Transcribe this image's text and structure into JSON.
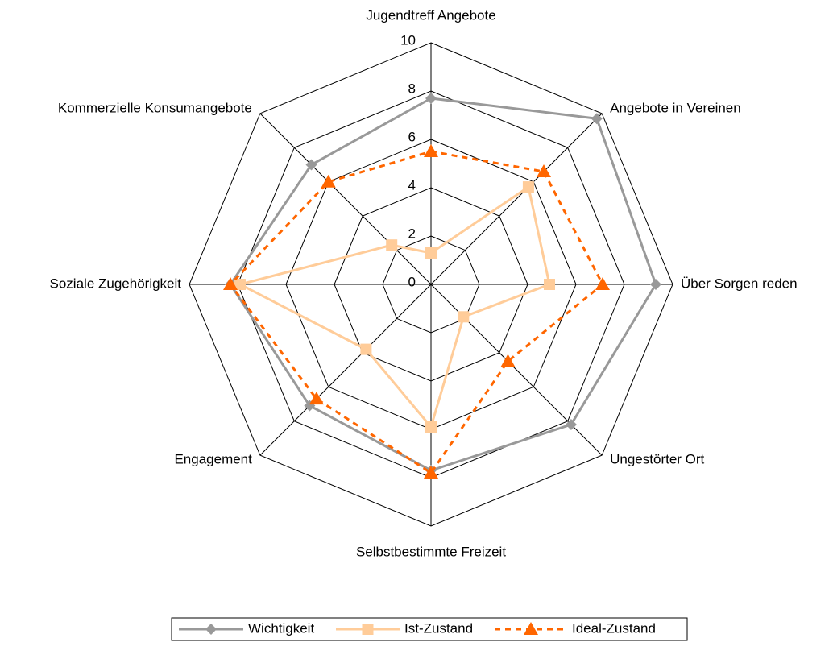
{
  "chart_data": {
    "type": "radar",
    "categories": [
      "Jugendtreff Angebote",
      "Angebote in Vereinen",
      "Über Sorgen reden",
      "Ungestörter Ort",
      "Selbstbestimmte Freizeit",
      "Engagement",
      "Soziale Zugehörigkeit",
      "Kommerzielle Konsumangebote"
    ],
    "rlim": [
      0,
      10
    ],
    "rticks": [
      0,
      2,
      4,
      6,
      8,
      10
    ],
    "grid": true,
    "legend": "bottom",
    "series": [
      {
        "name": "Wichtigkeit",
        "color": "#999999",
        "marker": "diamond",
        "dashed": false,
        "values": [
          7.7,
          9.7,
          9.3,
          8.2,
          7.7,
          7.1,
          8.3,
          7.0
        ]
      },
      {
        "name": "Ist-Zustand",
        "color": "#ffcc99",
        "marker": "square",
        "dashed": false,
        "values": [
          1.3,
          5.7,
          4.9,
          1.9,
          5.9,
          3.8,
          7.9,
          2.3
        ]
      },
      {
        "name": "Ideal-Zustand",
        "color": "#ff6600",
        "marker": "triangle",
        "dashed": true,
        "values": [
          5.5,
          6.6,
          7.1,
          4.5,
          7.8,
          6.7,
          8.3,
          6.0
        ]
      }
    ]
  }
}
